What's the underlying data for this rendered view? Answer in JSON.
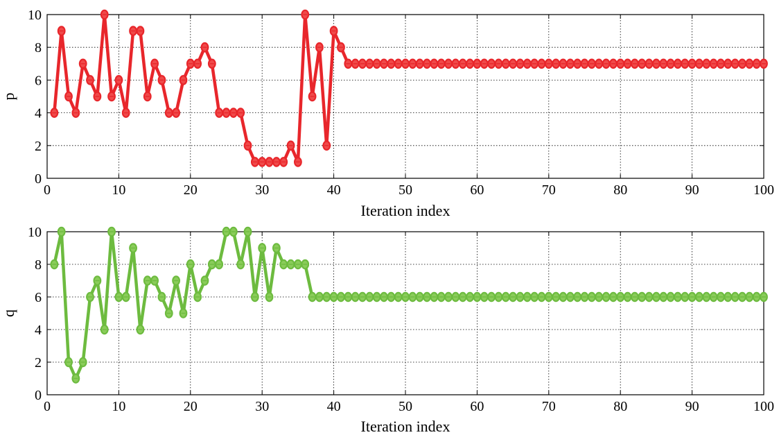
{
  "chart_data": [
    {
      "type": "line",
      "xlabel": "Iteration index",
      "ylabel": "p",
      "xlim": [
        0,
        100
      ],
      "ylim": [
        0,
        10
      ],
      "xticks": [
        0,
        10,
        20,
        30,
        40,
        50,
        60,
        70,
        80,
        90,
        100
      ],
      "yticks": [
        0,
        2,
        4,
        6,
        8,
        10
      ],
      "grid": true,
      "color": "#e8262b",
      "marker_fill": "#f04a4a",
      "x": [
        1,
        2,
        3,
        4,
        5,
        6,
        7,
        8,
        9,
        10,
        11,
        12,
        13,
        14,
        15,
        16,
        17,
        18,
        19,
        20,
        21,
        22,
        23,
        24,
        25,
        26,
        27,
        28,
        29,
        30,
        31,
        32,
        33,
        34,
        35,
        36,
        37,
        38,
        39,
        40,
        41,
        42,
        43,
        44,
        45,
        46,
        47,
        48,
        49,
        50,
        51,
        52,
        53,
        54,
        55,
        56,
        57,
        58,
        59,
        60,
        61,
        62,
        63,
        64,
        65,
        66,
        67,
        68,
        69,
        70,
        71,
        72,
        73,
        74,
        75,
        76,
        77,
        78,
        79,
        80,
        81,
        82,
        83,
        84,
        85,
        86,
        87,
        88,
        89,
        90,
        91,
        92,
        93,
        94,
        95,
        96,
        97,
        98,
        99,
        100
      ],
      "y": [
        4,
        9,
        5,
        4,
        7,
        6,
        5,
        10,
        5,
        6,
        4,
        9,
        9,
        5,
        7,
        6,
        4,
        4,
        6,
        7,
        7,
        8,
        7,
        4,
        4,
        4,
        4,
        2,
        1,
        1,
        1,
        1,
        1,
        2,
        1,
        10,
        5,
        8,
        2,
        9,
        8,
        7,
        7,
        7,
        7,
        7,
        7,
        7,
        7,
        7,
        7,
        7,
        7,
        7,
        7,
        7,
        7,
        7,
        7,
        7,
        7,
        7,
        7,
        7,
        7,
        7,
        7,
        7,
        7,
        7,
        7,
        7,
        7,
        7,
        7,
        7,
        7,
        7,
        7,
        7,
        7,
        7,
        7,
        7,
        7,
        7,
        7,
        7,
        7,
        7,
        7,
        7,
        7,
        7,
        7,
        7,
        7,
        7,
        7,
        7
      ]
    },
    {
      "type": "line",
      "xlabel": "Iteration index",
      "ylabel": "q",
      "xlim": [
        0,
        100
      ],
      "ylim": [
        0,
        10
      ],
      "xticks": [
        0,
        10,
        20,
        30,
        40,
        50,
        60,
        70,
        80,
        90,
        100
      ],
      "yticks": [
        0,
        2,
        4,
        6,
        8,
        10
      ],
      "grid": true,
      "color": "#6dbb3f",
      "marker_fill": "#8acc5a",
      "x": [
        1,
        2,
        3,
        4,
        5,
        6,
        7,
        8,
        9,
        10,
        11,
        12,
        13,
        14,
        15,
        16,
        17,
        18,
        19,
        20,
        21,
        22,
        23,
        24,
        25,
        26,
        27,
        28,
        29,
        30,
        31,
        32,
        33,
        34,
        35,
        36,
        37,
        38,
        39,
        40,
        41,
        42,
        43,
        44,
        45,
        46,
        47,
        48,
        49,
        50,
        51,
        52,
        53,
        54,
        55,
        56,
        57,
        58,
        59,
        60,
        61,
        62,
        63,
        64,
        65,
        66,
        67,
        68,
        69,
        70,
        71,
        72,
        73,
        74,
        75,
        76,
        77,
        78,
        79,
        80,
        81,
        82,
        83,
        84,
        85,
        86,
        87,
        88,
        89,
        90,
        91,
        92,
        93,
        94,
        95,
        96,
        97,
        98,
        99,
        100
      ],
      "y": [
        8,
        10,
        2,
        1,
        2,
        6,
        7,
        4,
        10,
        6,
        6,
        9,
        4,
        7,
        7,
        6,
        5,
        7,
        5,
        8,
        6,
        7,
        8,
        8,
        10,
        10,
        8,
        10,
        6,
        9,
        6,
        9,
        8,
        8,
        8,
        8,
        6,
        6,
        6,
        6,
        6,
        6,
        6,
        6,
        6,
        6,
        6,
        6,
        6,
        6,
        6,
        6,
        6,
        6,
        6,
        6,
        6,
        6,
        6,
        6,
        6,
        6,
        6,
        6,
        6,
        6,
        6,
        6,
        6,
        6,
        6,
        6,
        6,
        6,
        6,
        6,
        6,
        6,
        6,
        6,
        6,
        6,
        6,
        6,
        6,
        6,
        6,
        6,
        6,
        6,
        6,
        6,
        6,
        6,
        6,
        6,
        6,
        6,
        6,
        6
      ]
    }
  ]
}
